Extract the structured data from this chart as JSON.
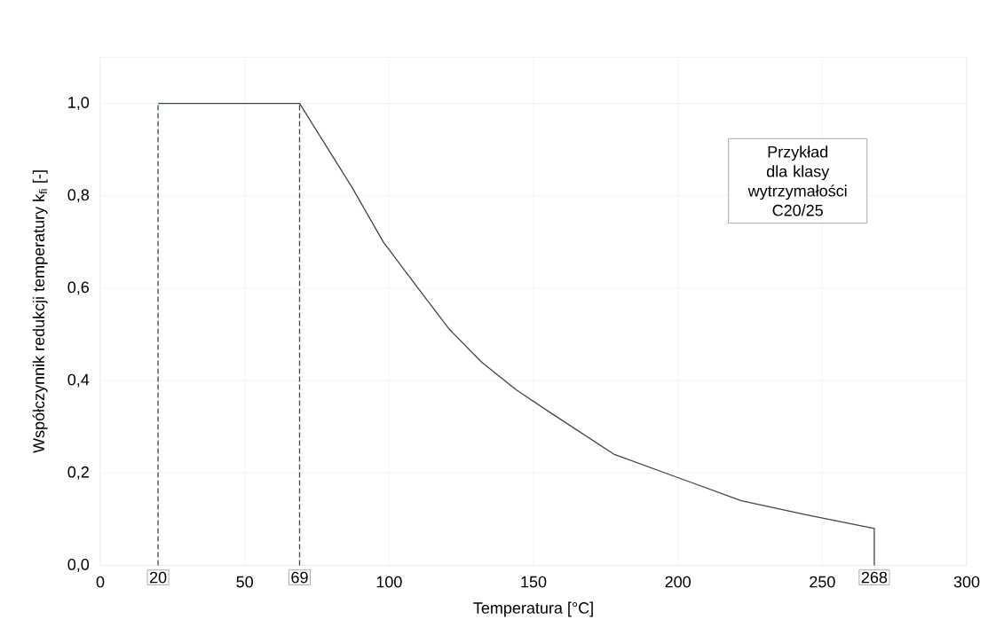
{
  "chart_data": {
    "type": "line",
    "xlabel": "Temperatura [°C]",
    "ylabel": "Współczynnik redukcji temperatury k$_{fi}$ [-]",
    "xlim": [
      0,
      300
    ],
    "ylim": [
      0,
      1.1
    ],
    "xticks": [
      0,
      50,
      100,
      150,
      200,
      250,
      300
    ],
    "yticks": [
      {
        "value": 0,
        "label": "0,0"
      },
      {
        "value": 0.2,
        "label": "0,2"
      },
      {
        "value": 0.4,
        "label": "0,4"
      },
      {
        "value": 0.6,
        "label": "0,6"
      },
      {
        "value": 0.8,
        "label": "0,8"
      },
      {
        "value": 1,
        "label": "1,0"
      }
    ],
    "grid": true,
    "series": [
      {
        "color": "#3a4a48",
        "line_style": "solid",
        "x": [
          20,
          69,
          75,
          87,
          98,
          110,
          121,
          132,
          144,
          156,
          178,
          200,
          222,
          244,
          268,
          268
        ],
        "values": [
          1,
          1,
          0.94,
          0.82,
          0.7,
          0.6,
          0.51,
          0.44,
          0.38,
          0.33,
          0.24,
          0.19,
          0.14,
          0.11,
          0.08,
          0
        ]
      },
      {
        "color": "#3a4a48",
        "line_style": "dashed",
        "x": [
          20,
          20
        ],
        "values": [
          0,
          1
        ]
      },
      {
        "color": "#3a4a48",
        "line_style": "dashed",
        "x": [
          69,
          69
        ],
        "values": [
          0,
          1
        ]
      }
    ],
    "annotations": [
      {
        "text": "20",
        "x": 20,
        "y": 0
      },
      {
        "text": "69",
        "x": 69,
        "y": 0
      },
      {
        "text": "268",
        "x": 268,
        "y": 0
      },
      "Przykład dla klasy wytrzymałości C20/25"
    ]
  }
}
